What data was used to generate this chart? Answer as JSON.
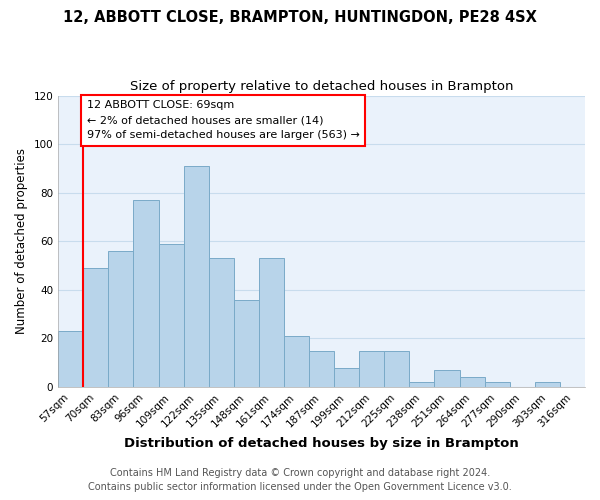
{
  "title": "12, ABBOTT CLOSE, BRAMPTON, HUNTINGDON, PE28 4SX",
  "subtitle": "Size of property relative to detached houses in Brampton",
  "xlabel": "Distribution of detached houses by size in Brampton",
  "ylabel": "Number of detached properties",
  "bar_labels": [
    "57sqm",
    "70sqm",
    "83sqm",
    "96sqm",
    "109sqm",
    "122sqm",
    "135sqm",
    "148sqm",
    "161sqm",
    "174sqm",
    "187sqm",
    "199sqm",
    "212sqm",
    "225sqm",
    "238sqm",
    "251sqm",
    "264sqm",
    "277sqm",
    "290sqm",
    "303sqm",
    "316sqm"
  ],
  "bar_heights": [
    23,
    49,
    56,
    77,
    59,
    91,
    53,
    36,
    53,
    21,
    15,
    8,
    15,
    15,
    2,
    7,
    4,
    2,
    0,
    2,
    0
  ],
  "bar_color": "#b8d4ea",
  "bar_edge_color": "#7aaac8",
  "annotation_box_text": "12 ABBOTT CLOSE: 69sqm\n← 2% of detached houses are smaller (14)\n97% of semi-detached houses are larger (563) →",
  "annotation_box_color": "white",
  "annotation_box_edge_color": "red",
  "vline_color": "red",
  "vline_x_idx": 1,
  "ylim": [
    0,
    120
  ],
  "yticks": [
    0,
    20,
    40,
    60,
    80,
    100,
    120
  ],
  "footer_line1": "Contains HM Land Registry data © Crown copyright and database right 2024.",
  "footer_line2": "Contains public sector information licensed under the Open Government Licence v3.0.",
  "bg_color": "#ffffff",
  "plot_bg_color": "#eaf2fb",
  "grid_color": "#c8dced",
  "title_fontsize": 10.5,
  "subtitle_fontsize": 9.5,
  "xlabel_fontsize": 9.5,
  "ylabel_fontsize": 8.5,
  "tick_fontsize": 7.5,
  "annotation_fontsize": 8,
  "footer_fontsize": 7
}
